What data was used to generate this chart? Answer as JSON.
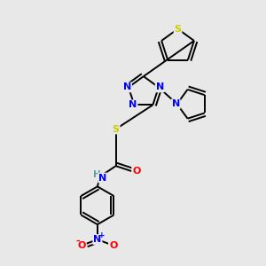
{
  "bg_color": "#e8e8e8",
  "bond_color": "#000000",
  "atom_colors": {
    "N": "#0000ff",
    "S": "#cccc00",
    "O": "#ff0000",
    "H": "#5f9ea0",
    "C": "#000000"
  }
}
